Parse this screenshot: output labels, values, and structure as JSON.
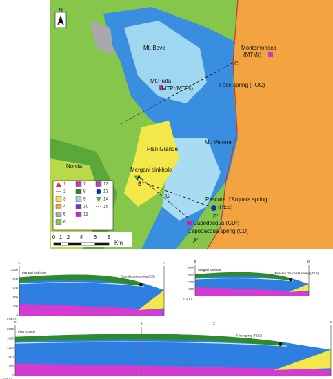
{
  "map": {
    "north": "N",
    "labels": [
      "Mt. Bove",
      "Montemonaco",
      "(MTMr)",
      "C'",
      "Mt.Prata",
      "(MTPr/MTPs)",
      "Foce spring (FOC)",
      "Plan Grande",
      "Mt. Vettore",
      "Norcia",
      "Mergani sinkhole",
      "A",
      "B",
      "C",
      "Pescara d'Arquata spring",
      "(PES)",
      "B'",
      "Capodacqua (CDr)",
      "Capodacqua spring (CD)",
      "A'"
    ],
    "legend": [
      "1",
      "2",
      "3",
      "4",
      "5",
      "6",
      "7",
      "8",
      "9",
      "10",
      "11",
      "12",
      "13",
      "14",
      "15"
    ],
    "scale": {
      "ticks": [
        "0",
        "1",
        "2",
        "4",
        "6",
        "8"
      ],
      "unit": "Km"
    }
  },
  "sections": [
    {
      "start": "A",
      "end": "A'",
      "yticks": [
        "2000",
        "1600",
        "1200",
        "800",
        "400",
        "0"
      ],
      "unit": "m a.s.l.",
      "labels": [
        "Mergani sinkhole",
        "Capodacqua spring (CD)"
      ]
    },
    {
      "start": "B",
      "end": "B'",
      "yticks": [
        "2000",
        "1600",
        "1200",
        "800"
      ],
      "unit": "m a.s.l.",
      "labels": [
        "Mergani sinkhole",
        "Pescara d'Arquata spring (PES)"
      ]
    },
    {
      "start": "C",
      "end": "C'",
      "yticks": [
        "2000",
        "1600",
        "1200",
        "800",
        "400",
        "0"
      ],
      "unit": "m a.s.l.",
      "labels": [
        "Plan Grande",
        "Foce spring (FOC)"
      ],
      "marks": [
        "X",
        "X"
      ]
    }
  ]
}
